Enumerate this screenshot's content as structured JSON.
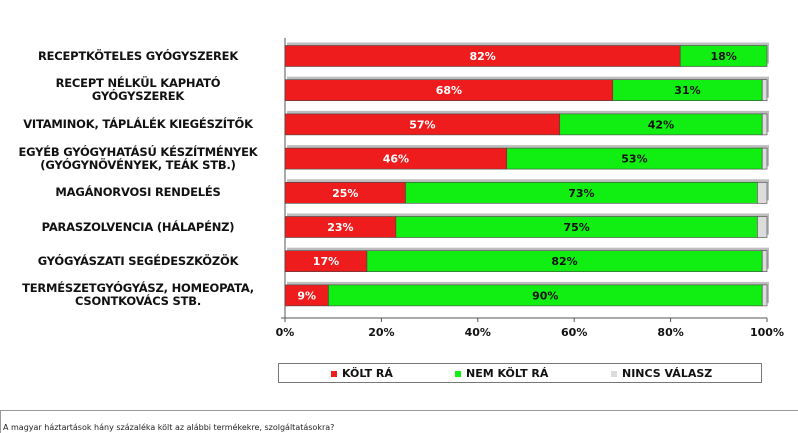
{
  "chart_data": {
    "type": "bar",
    "orientation": "horizontal",
    "stacked": true,
    "categories": [
      "RECEPTKÖTELES GYÓGYSZEREK",
      "RECEPT NÉLKÜL KAPHATÓ GYÓGYSZEREK",
      "VITAMINOK, TÁPLÁLÉK KIEGÉSZÍTŐK",
      "EGYÉB GYÓGYHATÁSÚ KÉSZÍTMÉNYEK (GYÓGYNÖVÉNYEK, TEÁK STB.)",
      "MAGÁNORVOSI RENDELÉS",
      "PARASZOLVENCIA (HÁLAPÉNZ)",
      "GYÓGYÁSZATI SEGÉDESZKÖZÖK",
      "TERMÉSZETGYÓGYÁSZ, HOMEOPATA, CSONTKOVÁCS STB."
    ],
    "category_lines": [
      [
        "RECEPTKÖTELES GYÓGYSZEREK"
      ],
      [
        "RECEPT NÉLKÜL KAPHATÓ",
        "GYÓGYSZEREK"
      ],
      [
        "VITAMINOK, TÁPLÁLÉK KIEGÉSZÍTŐK"
      ],
      [
        "EGYÉB GYÓGYHATÁSÚ KÉSZÍTMÉNYEK",
        "(GYÓGYNÖVÉNYEK, TEÁK STB.)"
      ],
      [
        "MAGÁNORVOSI RENDELÉS"
      ],
      [
        "PARASZOLVENCIA (HÁLAPÉNZ)"
      ],
      [
        "GYÓGYÁSZATI SEGÉDESZKÖZÖK"
      ],
      [
        "TERMÉSZETGYÓGYÁSZ, HOMEOPATA,",
        "CSONTKOVÁCS STB."
      ]
    ],
    "series": [
      {
        "name": "KÖLT RÁ",
        "color": "#ee1c1c",
        "values": [
          82,
          68,
          57,
          46,
          25,
          23,
          17,
          9
        ]
      },
      {
        "name": "NEM KÖLT RÁ",
        "color": "#11ee11",
        "values": [
          18,
          31,
          42,
          53,
          73,
          75,
          82,
          90
        ]
      },
      {
        "name": "NINCS VÁLASZ",
        "color": "#dcdcdc",
        "values": [
          0,
          1,
          1,
          1,
          2,
          2,
          1,
          1
        ]
      }
    ],
    "data_labels": [
      [
        "82%",
        "18%"
      ],
      [
        "68%",
        "31%"
      ],
      [
        "57%",
        "42%"
      ],
      [
        "46%",
        "53%"
      ],
      [
        "25%",
        "73%"
      ],
      [
        "23%",
        "75%"
      ],
      [
        "17%",
        "82%"
      ],
      [
        "9%",
        "90%"
      ]
    ],
    "x_ticks": [
      "0%",
      "20%",
      "40%",
      "60%",
      "80%",
      "100%"
    ],
    "xlim": [
      0,
      100
    ],
    "legend_position": "bottom",
    "grid": false
  },
  "legend": {
    "items": [
      {
        "label": "KÖLT RÁ",
        "color": "#ee1c1c"
      },
      {
        "label": "NEM KÖLT RÁ",
        "color": "#11ee11"
      },
      {
        "label": "NINCS VÁLASZ",
        "color": "#dcdcdc"
      }
    ]
  },
  "footnote": "A magyar háztartások hány százaléka költ az alábbi termékekre, szolgáltatásokra?"
}
